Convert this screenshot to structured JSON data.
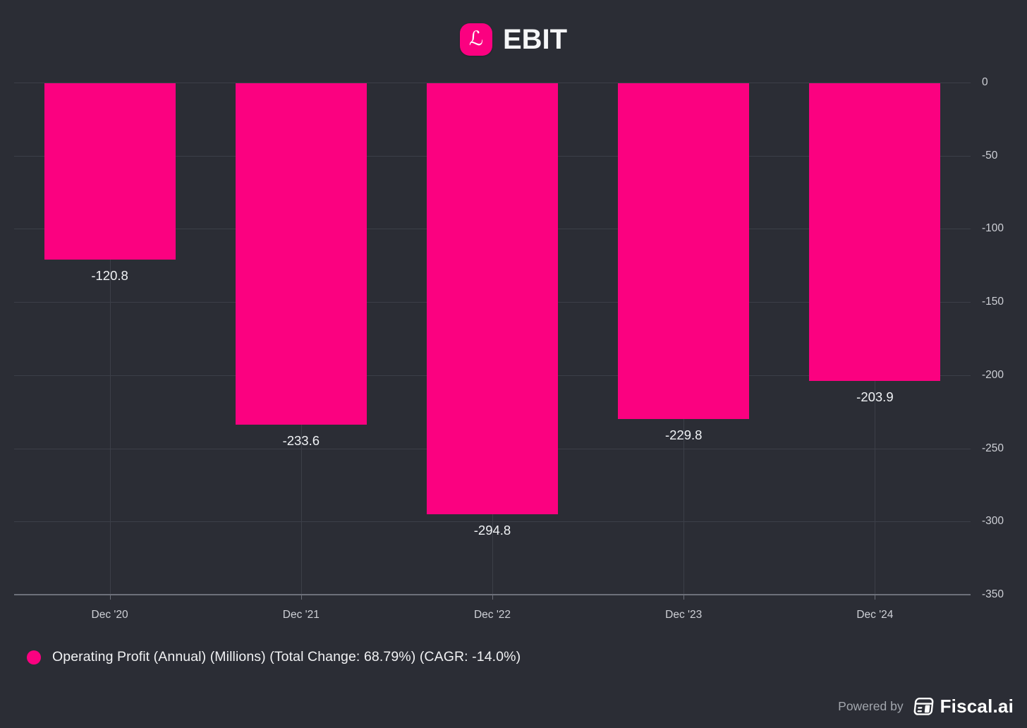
{
  "header": {
    "title": "EBIT",
    "logo_glyph": "ℒ"
  },
  "chart_data": {
    "type": "bar",
    "title": "EBIT",
    "categories": [
      "Dec '20",
      "Dec '21",
      "Dec '22",
      "Dec '23",
      "Dec '24"
    ],
    "values": [
      -120.8,
      -233.6,
      -294.8,
      -229.8,
      -203.9
    ],
    "bar_labels": [
      "-120.8",
      "-233.6",
      "-294.8",
      "-229.8",
      "-203.9"
    ],
    "series_name": "Operating Profit (Annual) (Millions)",
    "ylim": [
      -350,
      0
    ],
    "y_ticks": [
      0,
      -50,
      -100,
      -150,
      -200,
      -250,
      -300,
      -350
    ],
    "grid": true,
    "legend_position": "bottom-left",
    "bar_color": "#fb0180"
  },
  "legend": {
    "label": "Operating Profit (Annual) (Millions) (Total Change: 68.79%) (CAGR: -14.0%)",
    "dot_color": "#fb0180"
  },
  "footer": {
    "powered_by": "Powered by",
    "brand": "Fiscal.ai"
  },
  "colors": {
    "background": "#2b2d35",
    "bar": "#fb0180",
    "gridline": "#3c3f48",
    "axis_line": "#6d707a",
    "tick_label": "#ced0d6",
    "value_label": "#f0f2f5",
    "legend_text": "#f1f2f4",
    "powered_by_text": "#a2a6ad",
    "brand_text": "#ffffff",
    "logo_background": "#fb0180"
  }
}
